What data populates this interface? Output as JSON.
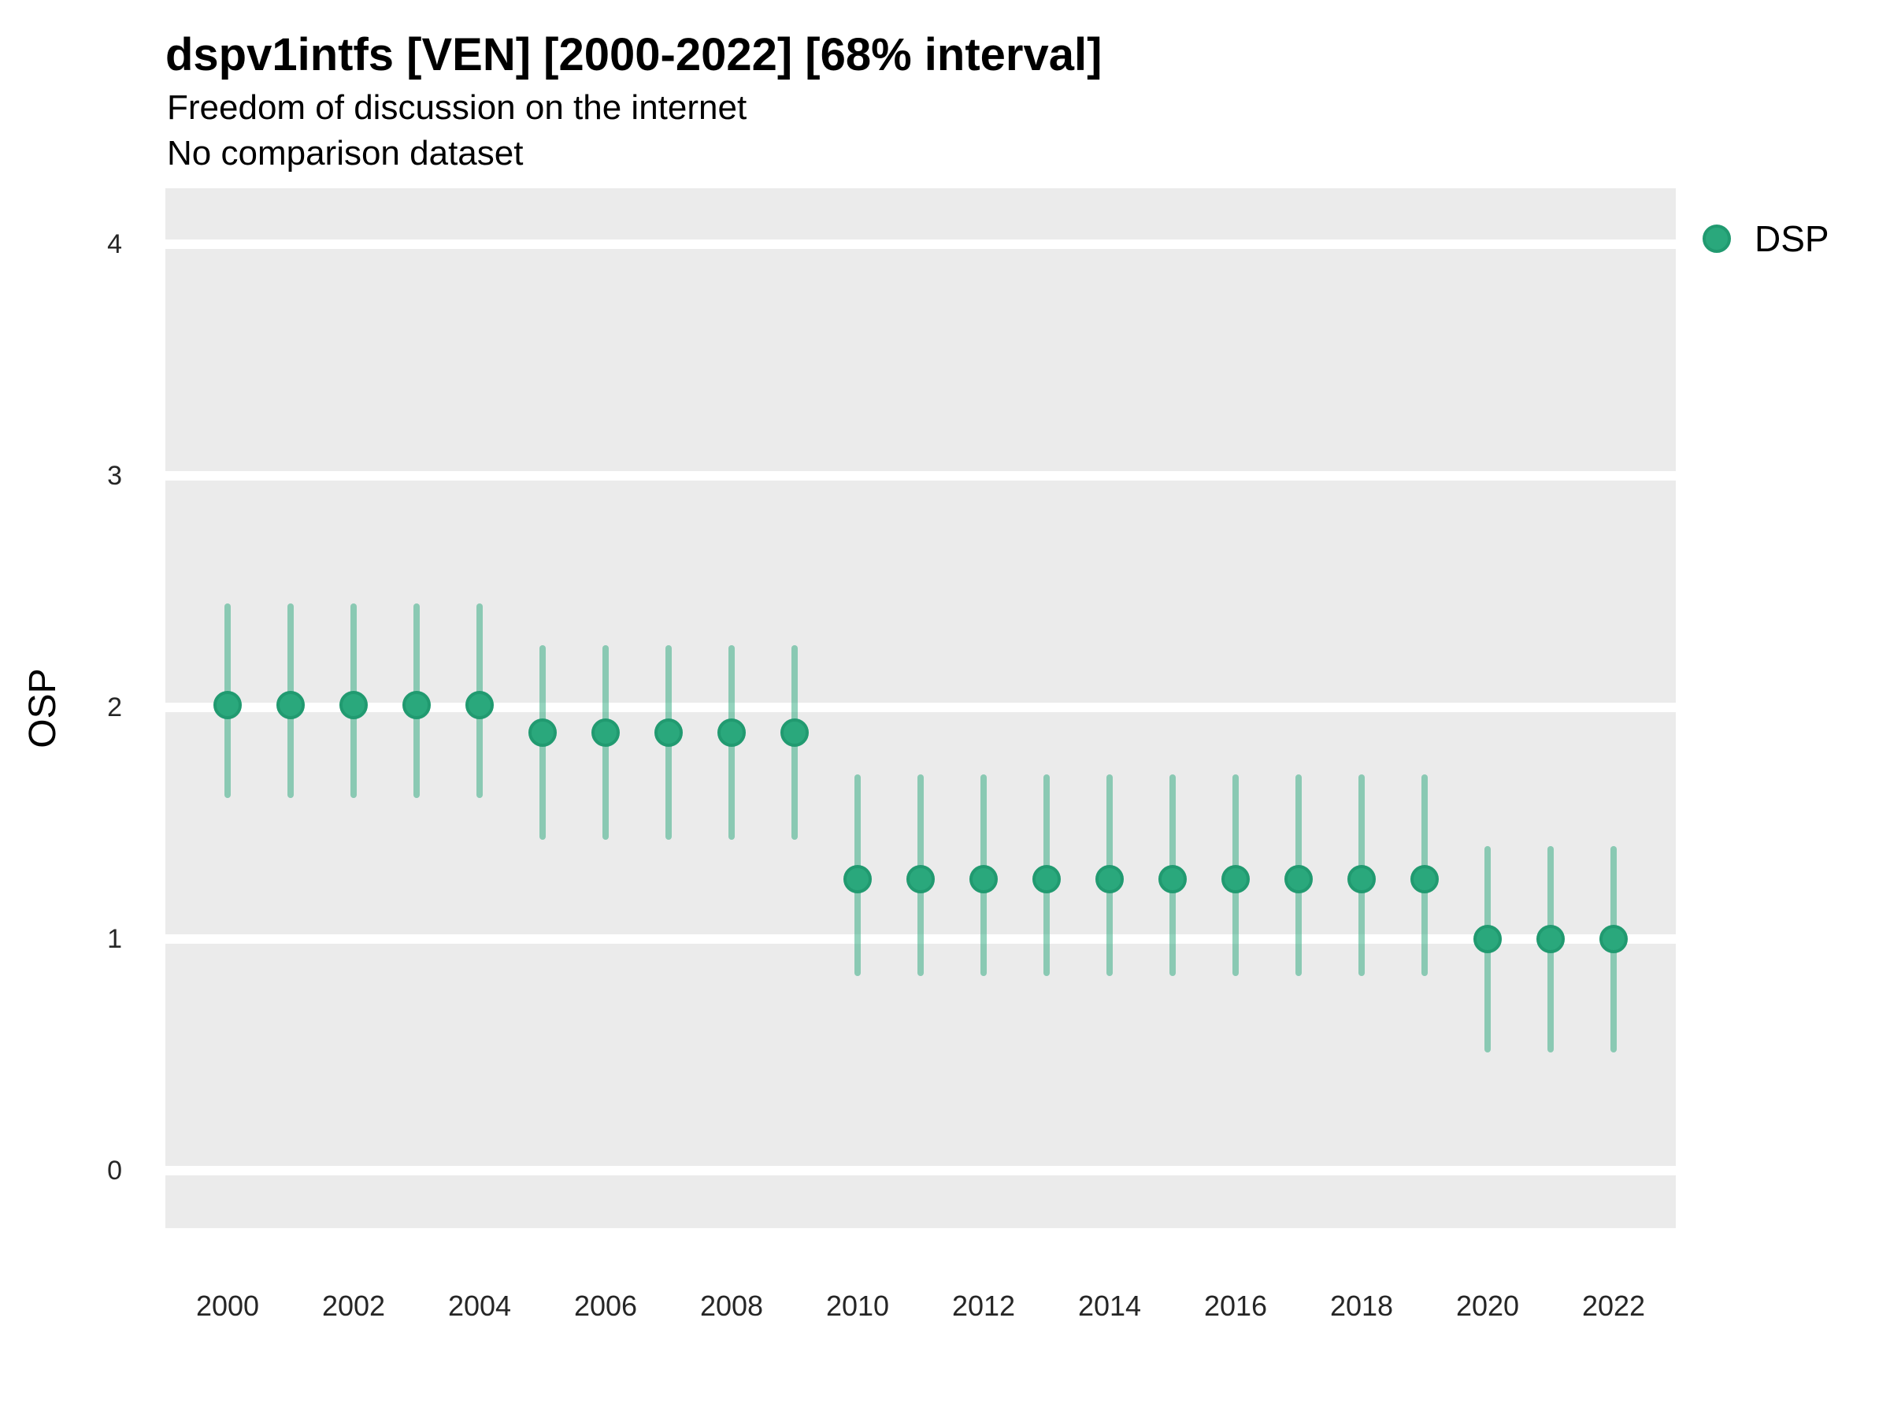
{
  "header": {
    "title": "dspv1intfs [VEN] [2000-2022] [68% interval]",
    "subtitle_line1": "Freedom of discussion on the internet",
    "subtitle_line2": "No comparison dataset"
  },
  "legend": {
    "items": [
      {
        "label": "DSP",
        "color": "#2aa87c"
      }
    ]
  },
  "axes": {
    "y_title": "OSP",
    "y_ticks": [
      "0",
      "1",
      "2",
      "3",
      "4"
    ],
    "x_ticks": [
      "2000",
      "2002",
      "2004",
      "2006",
      "2008",
      "2010",
      "2012",
      "2014",
      "2016",
      "2018",
      "2020",
      "2022"
    ]
  },
  "colors": {
    "panel_bg": "#ebebeb",
    "gridline": "#ffffff",
    "point_fill": "#2aa87c",
    "point_ring": "#219a70",
    "interval_bar": "rgba(42,168,124,0.5)",
    "text": "#000000"
  },
  "chart_data": {
    "type": "scatter",
    "style": "pointrange",
    "title": "dspv1intfs [VEN] [2000-2022] [68% interval]",
    "subtitle": "Freedom of discussion on the internet",
    "comparison": "No comparison dataset",
    "interval_label": "68% interval",
    "xlabel": "",
    "ylabel": "OSP",
    "x_range": [
      2000,
      2022
    ],
    "ylim": [
      -0.25,
      4.25
    ],
    "y_gridlines": [
      0,
      1,
      2,
      3,
      4
    ],
    "grid": "horizontal-only",
    "legend_position": "right",
    "series": [
      {
        "name": "DSP",
        "x": [
          2000,
          2001,
          2002,
          2003,
          2004,
          2005,
          2006,
          2007,
          2008,
          2009,
          2010,
          2011,
          2012,
          2013,
          2014,
          2015,
          2016,
          2017,
          2018,
          2019,
          2020,
          2021,
          2022
        ],
        "y": [
          2.01,
          2.01,
          2.01,
          2.01,
          2.01,
          1.89,
          1.89,
          1.89,
          1.89,
          1.89,
          1.26,
          1.26,
          1.26,
          1.26,
          1.26,
          1.26,
          1.26,
          1.26,
          1.26,
          1.26,
          1.0,
          1.0,
          1.0
        ],
        "y_low": [
          1.61,
          1.61,
          1.61,
          1.61,
          1.61,
          1.43,
          1.43,
          1.43,
          1.43,
          1.43,
          0.84,
          0.84,
          0.84,
          0.84,
          0.84,
          0.84,
          0.84,
          0.84,
          0.84,
          0.84,
          0.51,
          0.51,
          0.51
        ],
        "y_high": [
          2.45,
          2.45,
          2.45,
          2.45,
          2.45,
          2.27,
          2.27,
          2.27,
          2.27,
          2.27,
          1.71,
          1.71,
          1.71,
          1.71,
          1.71,
          1.71,
          1.71,
          1.71,
          1.71,
          1.71,
          1.4,
          1.4,
          1.4
        ]
      }
    ]
  }
}
